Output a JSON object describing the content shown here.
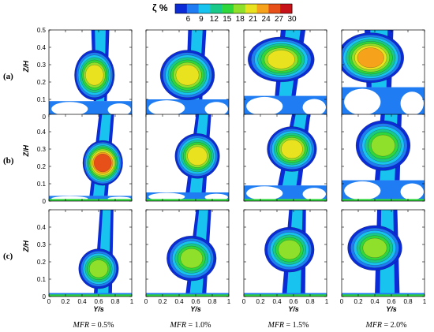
{
  "chart_data": {
    "type": "heatmap",
    "colorbar": {
      "title": "ζ %",
      "ticks": [
        "6",
        "9",
        "12",
        "15",
        "18",
        "21",
        "24",
        "27",
        "30"
      ],
      "range": [
        3,
        30
      ],
      "colors": [
        "#0a2bd6",
        "#1f7cf2",
        "#18c3ef",
        "#19c989",
        "#2fd63c",
        "#8fe02b",
        "#e8e21f",
        "#f6a21a",
        "#e8501a",
        "#c8121a"
      ]
    },
    "x_axis": {
      "label": "Y/s",
      "range": [
        0,
        1
      ],
      "ticks": [
        "0",
        "0.2",
        "0.4",
        "0.6",
        "0.8",
        "1"
      ]
    },
    "y_axis": {
      "label": "Z/H",
      "range": [
        0,
        0.5
      ],
      "ticks": [
        "0",
        "0.1",
        "0.2",
        "0.3",
        "0.4",
        "0.5"
      ]
    },
    "rows": [
      {
        "label": "(a)"
      },
      {
        "label": "(b)"
      },
      {
        "label": "(c)"
      }
    ],
    "columns": [
      {
        "label": "MFR = 0.5%"
      },
      {
        "label": "MFR = 1.0%"
      },
      {
        "label": "MFR = 1.5%"
      },
      {
        "label": "MFR = 2.0%"
      }
    ],
    "panels": [
      [
        {
          "peak": 23,
          "core": [
            0.55,
            0.24
          ],
          "core_rx": 0.14,
          "core_ry": 0.09,
          "plume_x_top": 0.62,
          "plume_x_base": 0.62,
          "width_top": 0.22,
          "width_base": 0.16,
          "wake_z": 0.09
        },
        {
          "peak": 22,
          "core": [
            0.5,
            0.24
          ],
          "core_rx": 0.2,
          "core_ry": 0.09,
          "plume_x_top": 0.62,
          "plume_x_base": 0.58,
          "width_top": 0.22,
          "width_base": 0.2,
          "wake_z": 0.1
        },
        {
          "peak": 24,
          "core": [
            0.45,
            0.33
          ],
          "core_rx": 0.25,
          "core_ry": 0.08,
          "plume_x_top": 0.6,
          "plume_x_base": 0.5,
          "width_top": 0.3,
          "width_base": 0.25,
          "wake_z": 0.12
        },
        {
          "peak": 27,
          "core": [
            0.35,
            0.34
          ],
          "core_rx": 0.25,
          "core_ry": 0.09,
          "plume_x_top": 0.45,
          "plume_x_base": 0.45,
          "width_top": 0.35,
          "width_base": 0.3,
          "wake_z": 0.17
        }
      ],
      [
        {
          "peak": 28,
          "core": [
            0.65,
            0.22
          ],
          "core_rx": 0.14,
          "core_ry": 0.08,
          "plume_x_top": 0.7,
          "plume_x_base": 0.6,
          "width_top": 0.18,
          "width_base": 0.22,
          "wake_z": 0.03
        },
        {
          "peak": 24,
          "core": [
            0.62,
            0.26
          ],
          "core_rx": 0.16,
          "core_ry": 0.08,
          "plume_x_top": 0.7,
          "plume_x_base": 0.6,
          "width_top": 0.18,
          "width_base": 0.24,
          "wake_z": 0.05
        },
        {
          "peak": 23,
          "core": [
            0.58,
            0.3
          ],
          "core_rx": 0.18,
          "core_ry": 0.08,
          "plume_x_top": 0.7,
          "plume_x_base": 0.55,
          "width_top": 0.22,
          "width_base": 0.28,
          "wake_z": 0.09
        },
        {
          "peak": 21,
          "core": [
            0.5,
            0.32
          ],
          "core_rx": 0.2,
          "core_ry": 0.09,
          "plume_x_top": 0.6,
          "plume_x_base": 0.55,
          "width_top": 0.25,
          "width_base": 0.3,
          "wake_z": 0.12
        }
      ],
      [
        {
          "peak": 19,
          "core": [
            0.6,
            0.16
          ],
          "core_rx": 0.14,
          "core_ry": 0.07,
          "plume_x_top": 0.7,
          "plume_x_base": 0.65,
          "width_top": 0.16,
          "width_base": 0.22,
          "wake_z": 0.0
        },
        {
          "peak": 19,
          "core": [
            0.55,
            0.22
          ],
          "core_rx": 0.18,
          "core_ry": 0.08,
          "plume_x_top": 0.7,
          "plume_x_base": 0.6,
          "width_top": 0.18,
          "width_base": 0.25,
          "wake_z": 0.0
        },
        {
          "peak": 21,
          "core": [
            0.55,
            0.27
          ],
          "core_rx": 0.18,
          "core_ry": 0.08,
          "plume_x_top": 0.65,
          "plume_x_base": 0.6,
          "width_top": 0.2,
          "width_base": 0.28,
          "wake_z": 0.0
        },
        {
          "peak": 21,
          "core": [
            0.4,
            0.28
          ],
          "core_rx": 0.2,
          "core_ry": 0.08,
          "plume_x_top": 0.55,
          "plume_x_base": 0.55,
          "width_top": 0.24,
          "width_base": 0.3,
          "wake_z": 0.0
        }
      ]
    ]
  }
}
